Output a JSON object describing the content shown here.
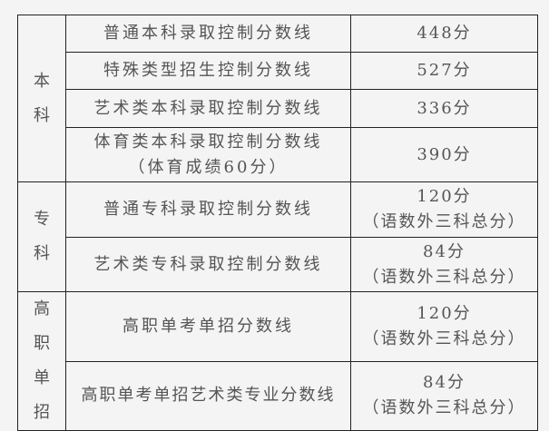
{
  "groups": [
    {
      "label": "本科",
      "rows": [
        {
          "name": "普通本科录取控制分数线",
          "score": "448分"
        },
        {
          "name": "特殊类型招生控制分数线",
          "score": "527分"
        },
        {
          "name": "艺术类本科录取控制分数线",
          "score": "336分"
        },
        {
          "name": "体育类本科录取控制分数线",
          "name_note": "（体育成绩60分）",
          "score": "390分"
        }
      ]
    },
    {
      "label": "专科",
      "rows": [
        {
          "name": "普通专科录取控制分数线",
          "score": "120分",
          "score_note": "（语数外三科总分）"
        },
        {
          "name": "艺术类专科录取控制分数线",
          "score": "84分",
          "score_note": "（语数外三科总分）"
        }
      ]
    },
    {
      "label": "高职单招",
      "rows": [
        {
          "name": "高职单考单招分数线",
          "score": "120分",
          "score_note": "（语数外三科总分）"
        },
        {
          "name": "高职单考单招艺术类专业分数线",
          "score": "84分",
          "score_note": "（语数外三科总分）"
        }
      ]
    }
  ]
}
